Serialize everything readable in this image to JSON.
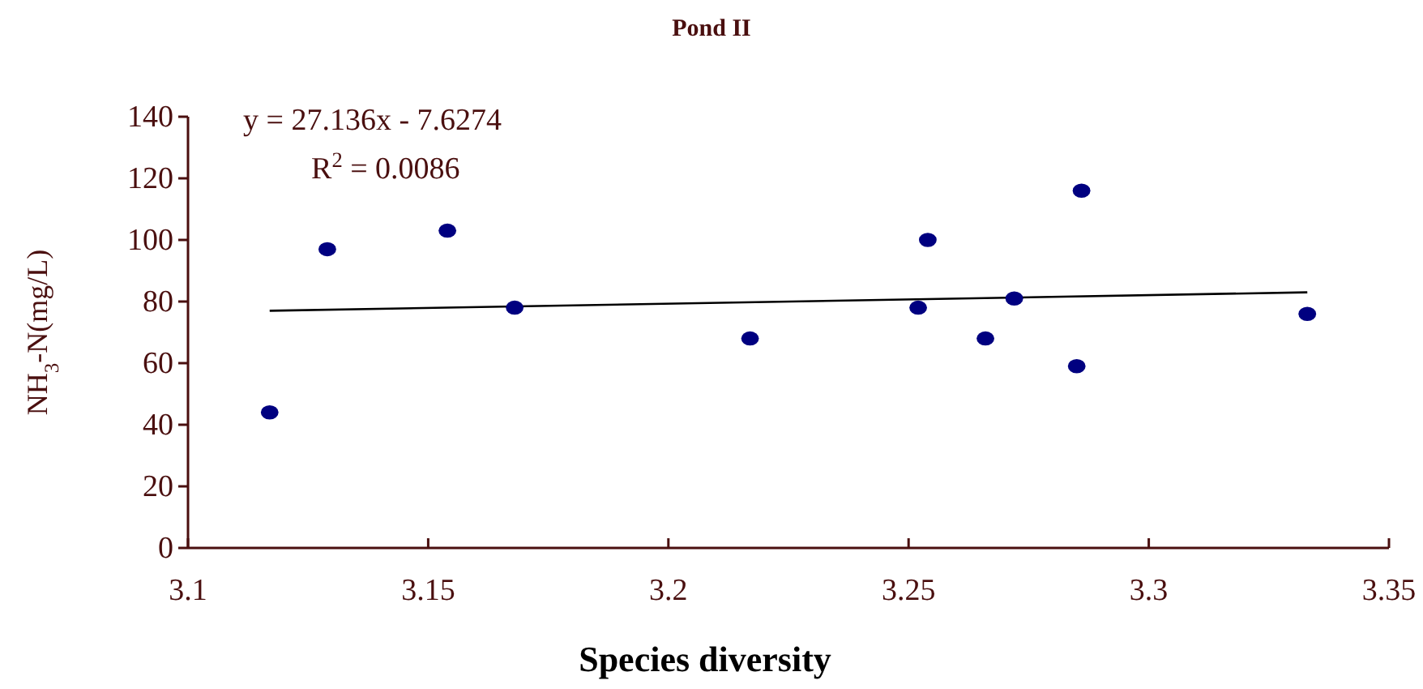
{
  "chart_data": {
    "type": "scatter",
    "title": "Pond II",
    "xlabel": "Species diversity",
    "ylabel": "NH$_{3}$-N(mg/L)",
    "xlim": [
      3.1,
      3.35
    ],
    "xticks": [
      3.1,
      3.15,
      3.2,
      3.25,
      3.3,
      3.35
    ],
    "ylim": [
      0,
      140
    ],
    "yticks": [
      0,
      20,
      40,
      60,
      80,
      100,
      120,
      140
    ],
    "grid": false,
    "annotations": [
      "y = 27.136x - 7.6274",
      "R$^{2}$ = 0.0086"
    ],
    "series": [
      {
        "marker": "circle",
        "color": "#000080",
        "x": [
          3.117,
          3.129,
          3.154,
          3.168,
          3.217,
          3.252,
          3.254,
          3.266,
          3.272,
          3.285,
          3.286,
          3.333
        ],
        "values": [
          44,
          97,
          103,
          78,
          68,
          78,
          100,
          68,
          81,
          59,
          116,
          76
        ]
      },
      {
        "type": "line",
        "color": "#000000",
        "line_style": "solid",
        "x": [
          3.117,
          3.333
        ],
        "values": [
          77,
          83
        ]
      }
    ]
  }
}
